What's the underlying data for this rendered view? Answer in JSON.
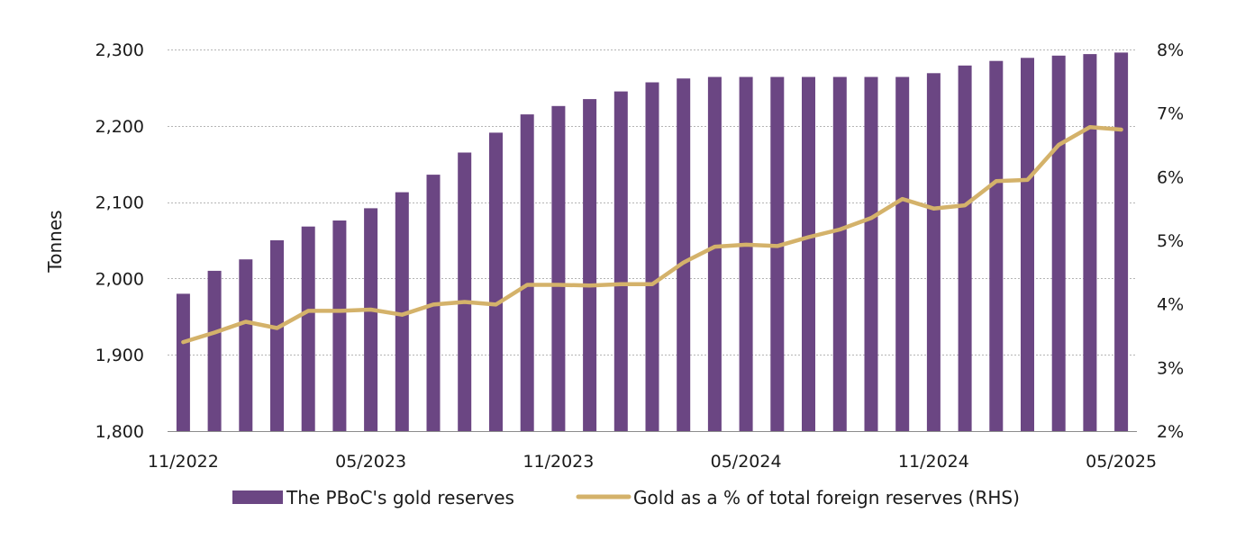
{
  "chart_data": {
    "type": "bar",
    "title": "",
    "categories": [
      "11/2022",
      "12/2022",
      "01/2023",
      "02/2023",
      "03/2023",
      "04/2023",
      "05/2023",
      "06/2023",
      "07/2023",
      "08/2023",
      "09/2023",
      "10/2023",
      "11/2023",
      "12/2023",
      "01/2024",
      "02/2024",
      "03/2024",
      "04/2024",
      "05/2024",
      "06/2024",
      "07/2024",
      "08/2024",
      "09/2024",
      "10/2024",
      "11/2024",
      "12/2024",
      "01/2025",
      "02/2025",
      "03/2025",
      "04/2025",
      "05/2025"
    ],
    "x_tick_labels": [
      {
        "index": 0,
        "label": "11/2022"
      },
      {
        "index": 6,
        "label": "05/2023"
      },
      {
        "index": 12,
        "label": "11/2023"
      },
      {
        "index": 18,
        "label": "05/2024"
      },
      {
        "index": 24,
        "label": "11/2024"
      },
      {
        "index": 30,
        "label": "05/2025"
      }
    ],
    "ylabel": "Tonnes",
    "y_left": {
      "min": 1800,
      "max": 2300,
      "ticks": [
        "1,800",
        "1,900",
        "2,000",
        "2,100",
        "2,200",
        "2,300"
      ]
    },
    "y_right": {
      "min": 2,
      "max": 8,
      "ticks": [
        "2%",
        "3%",
        "4%",
        "5%",
        "6%",
        "7%",
        "8%"
      ]
    },
    "grid": true,
    "legend_position": "bottom",
    "series": [
      {
        "name": "The PBoC's gold reserves",
        "type": "bar",
        "axis": "left",
        "color": "#6b4683",
        "values": [
          1980,
          2010,
          2025,
          2050,
          2068,
          2076,
          2092,
          2113,
          2136,
          2165,
          2191,
          2215,
          2226,
          2235,
          2245,
          2257,
          2262,
          2264,
          2264,
          2264,
          2264,
          2264,
          2264,
          2264,
          2269,
          2279,
          2285,
          2289,
          2292,
          2294,
          2296
        ]
      },
      {
        "name": "Gold as a % of total foreign reserves (RHS)",
        "type": "line",
        "axis": "right",
        "color": "#d4b26a",
        "values": [
          3.4,
          3.55,
          3.72,
          3.62,
          3.89,
          3.89,
          3.91,
          3.83,
          3.99,
          4.03,
          3.99,
          4.3,
          4.3,
          4.29,
          4.31,
          4.31,
          4.65,
          4.9,
          4.93,
          4.91,
          5.05,
          5.17,
          5.35,
          5.65,
          5.5,
          5.55,
          5.93,
          5.95,
          6.5,
          6.78,
          6.74
        ]
      }
    ]
  }
}
